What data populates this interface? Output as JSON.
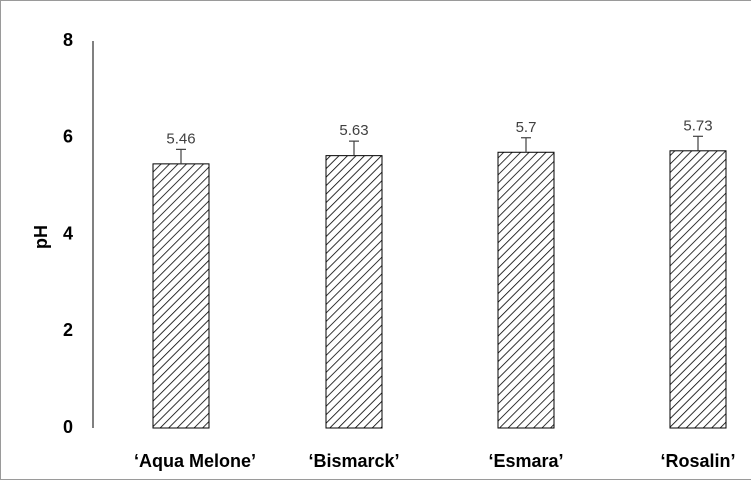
{
  "chart_data": {
    "type": "bar",
    "title": "",
    "xlabel": "",
    "ylabel": "pH",
    "ylim": [
      0,
      8
    ],
    "yticks": [
      "0",
      "2",
      "4",
      "6",
      "8"
    ],
    "categories": [
      "‘Aqua Melone’",
      "‘Bismarck’",
      "‘Esmara’",
      "‘Rosalin’"
    ],
    "values": [
      5.46,
      5.63,
      5.7,
      5.73
    ],
    "data_labels": [
      "5.46",
      "5.63",
      "5.7",
      "5.73"
    ],
    "error_bars": [
      0.3,
      0.3,
      0.3,
      0.3
    ],
    "grid": false,
    "bar_fill": "diagonal-hatch",
    "colors": {
      "bar_outline": "#000000",
      "hatch": "#000000",
      "error_bar": "#404040",
      "data_label": "#404040",
      "axis": "#000000"
    }
  }
}
